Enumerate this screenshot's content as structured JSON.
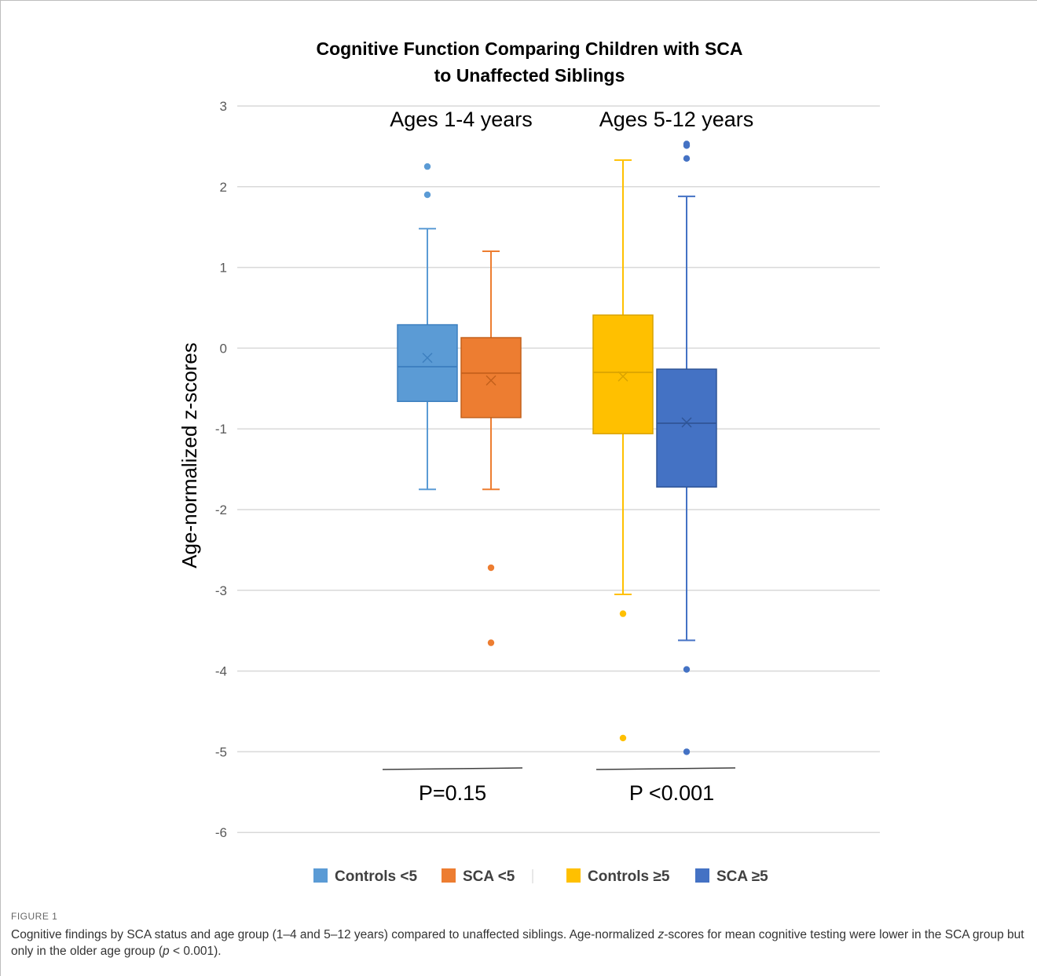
{
  "chart_data": {
    "type": "box",
    "title_lines": [
      "Cognitive Function Comparing Children with SCA",
      "to Unaffected Siblings"
    ],
    "ylabel": "Age-normalized z-scores",
    "ylim": [
      -6,
      3
    ],
    "yticks": [
      "3",
      "2",
      "1",
      "0",
      "-1",
      "-2",
      "-3",
      "-4",
      "-5",
      "-6"
    ],
    "ytick_values": [
      3,
      2,
      1,
      0,
      -1,
      -2,
      -3,
      -4,
      -5,
      -6
    ],
    "grid": true,
    "groups": [
      {
        "label": "Ages 1-4 years",
        "p_value": "P=0.15"
      },
      {
        "label": "Ages 5-12 years",
        "p_value": "P <0.001"
      }
    ],
    "series": [
      {
        "name": "Controls <5",
        "group": 0,
        "color": "#5B9BD5",
        "whisker_low": -1.75,
        "q1": -0.66,
        "median": -0.23,
        "q3": 0.29,
        "whisker_high": 1.48,
        "mean": -0.12,
        "outliers": [
          1.9,
          2.25
        ]
      },
      {
        "name": "SCA <5",
        "group": 0,
        "color": "#ED7D31",
        "whisker_low": -1.75,
        "q1": -0.86,
        "median": -0.31,
        "q3": 0.13,
        "whisker_high": 1.2,
        "mean": -0.4,
        "outliers": [
          -2.72,
          -3.65
        ]
      },
      {
        "name": "Controls ≥5",
        "group": 1,
        "color": "#FFC000",
        "whisker_low": -3.05,
        "q1": -1.06,
        "median": -0.3,
        "q3": 0.41,
        "whisker_high": 2.33,
        "mean": -0.35,
        "outliers": [
          -3.29,
          -4.83
        ]
      },
      {
        "name": "SCA ≥5",
        "group": 1,
        "color": "#4472C4",
        "whisker_low": -3.62,
        "q1": -1.72,
        "median": -0.93,
        "q3": -0.26,
        "whisker_high": 1.88,
        "mean": -0.92,
        "outliers": [
          2.35,
          2.51,
          2.53,
          -3.98,
          -5.0
        ]
      }
    ],
    "legend_placement": "bottom"
  },
  "caption": {
    "figure_label": "FIGURE 1",
    "text_parts": [
      "Cognitive findings by SCA status and age group (1–4 and 5–12 years) compared to unaffected siblings. Age-normalized ",
      "z",
      "-scores for mean cognitive testing were lower in the SCA group but only in the older age group (",
      "p",
      " < 0.001)."
    ]
  }
}
